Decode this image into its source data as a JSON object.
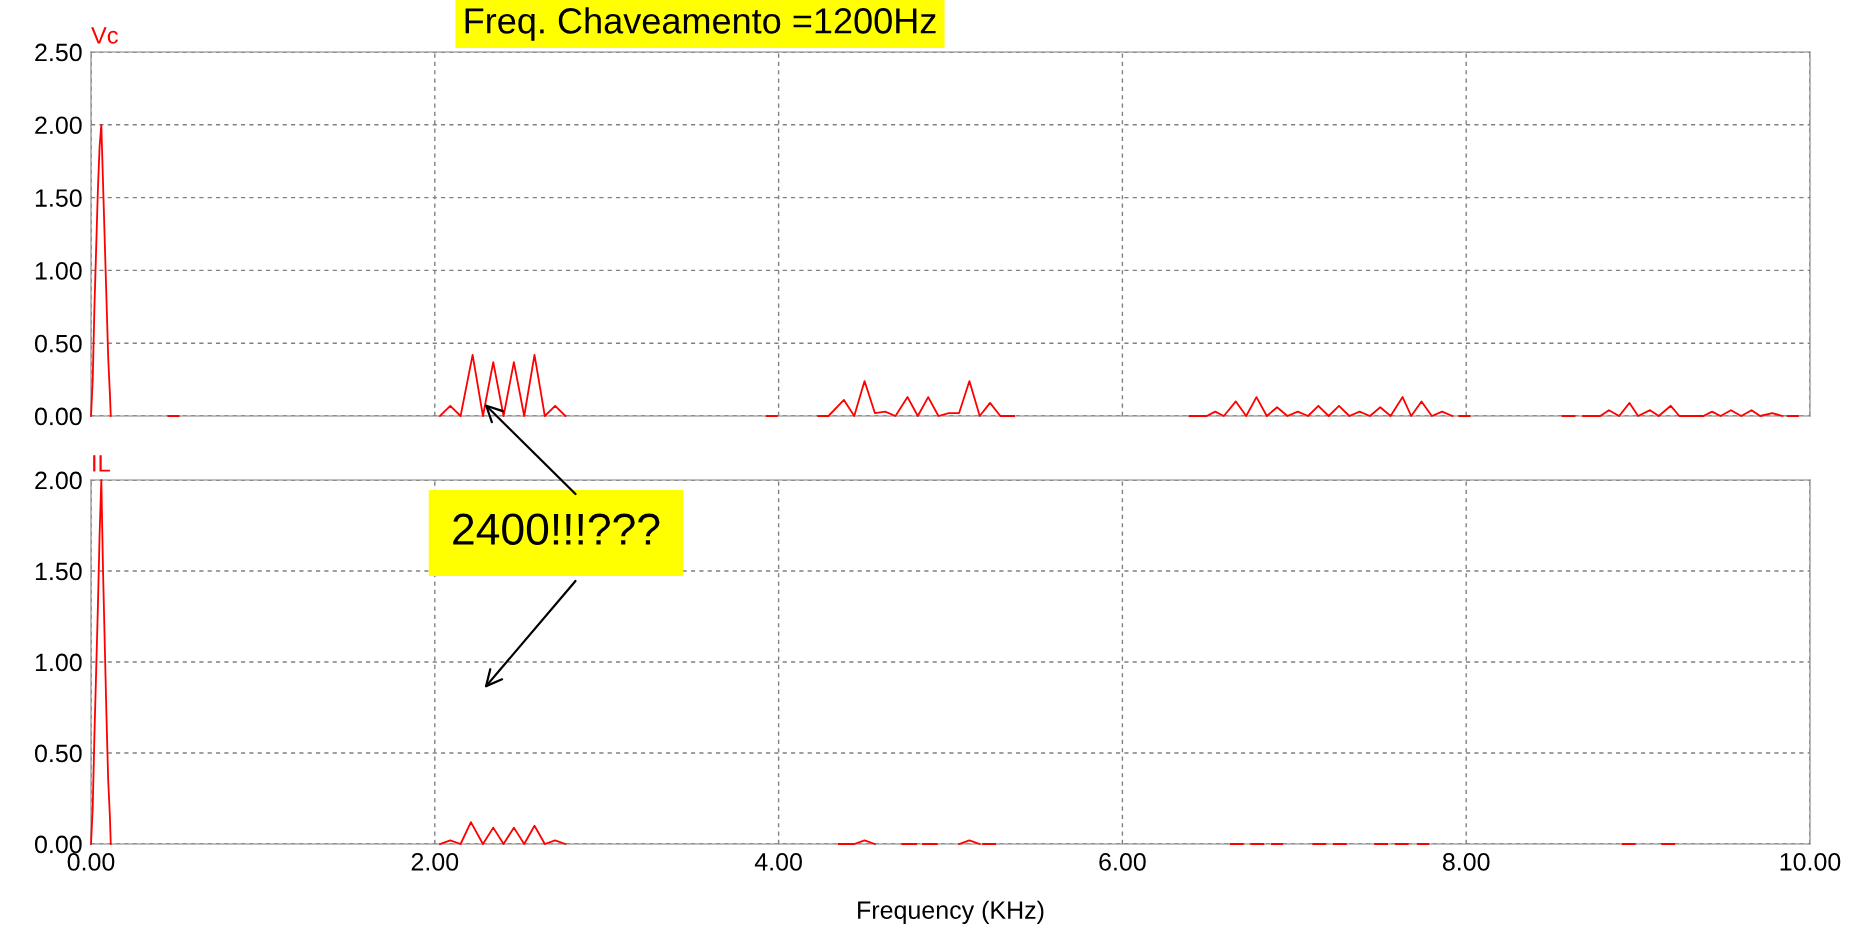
{
  "chart_data": [
    {
      "type": "line",
      "title": "Freq. Chaveamento =1200Hz",
      "ylabel": "Vc",
      "xlim": [
        0,
        10
      ],
      "xticks": [
        {
          "value": 0,
          "label": null
        },
        {
          "value": 2,
          "label": null
        },
        {
          "value": 4,
          "label": null
        },
        {
          "value": 6,
          "label": null
        },
        {
          "value": 8,
          "label": null
        },
        {
          "value": 10,
          "label": null
        }
      ],
      "ylim": [
        0,
        2.5
      ],
      "yticks": [
        {
          "value": 0,
          "label": "0.00"
        },
        {
          "value": 0.5,
          "label": "0.50"
        },
        {
          "value": 1,
          "label": "1.00"
        },
        {
          "value": 1.5,
          "label": "1.50"
        },
        {
          "value": 2,
          "label": "2.00"
        },
        {
          "value": 2.5,
          "label": "2.50"
        }
      ],
      "tick_labels": "y",
      "grid": true,
      "marker": "none",
      "line_style": "solid",
      "series": [
        {
          "color": "#ff0000",
          "x": [
            0,
            0.01,
            0.02,
            0.03,
            0.04,
            0.05,
            0.06,
            0.07,
            0.08,
            0.09,
            0.1,
            0.11,
            0.115,
            0.2,
            0.45,
            0.51,
            0.6,
            2.03,
            2.09,
            2.15,
            2.22,
            2.28,
            2.34,
            2.4,
            2.46,
            2.52,
            2.58,
            2.64,
            2.7,
            2.76,
            3.0,
            3.93,
            3.99,
            4.1,
            4.23,
            4.29,
            4.38,
            4.44,
            4.5,
            4.56,
            4.62,
            4.68,
            4.75,
            4.81,
            4.87,
            4.93,
            4.99,
            5.05,
            5.11,
            5.17,
            5.23,
            5.29,
            5.37,
            5.5,
            6.39,
            6.49,
            6.54,
            6.59,
            6.66,
            6.72,
            6.78,
            6.84,
            6.9,
            6.96,
            7.02,
            7.08,
            7.14,
            7.2,
            7.26,
            7.32,
            7.38,
            7.44,
            7.5,
            7.56,
            7.63,
            7.68,
            7.74,
            7.8,
            7.86,
            7.92,
            7.94,
            7.96,
            8.02,
            8.3,
            8.56,
            8.63,
            8.65,
            8.68,
            8.78,
            8.83,
            8.89,
            8.95,
            9.0,
            9.07,
            9.12,
            9.19,
            9.24,
            9.34,
            9.38,
            9.43,
            9.48,
            9.54,
            9.6,
            9.66,
            9.71,
            9.78,
            9.84,
            9.85,
            9.87,
            9.93
          ],
          "values": [
            0,
            0.25,
            0.75,
            1.15,
            1.55,
            1.85,
            2.0,
            1.6,
            1.2,
            0.8,
            0.4,
            0.15,
            0,
            null,
            0,
            0,
            null,
            0,
            0.07,
            0,
            0.42,
            0,
            0.37,
            0,
            0.37,
            0,
            0.42,
            0,
            0.07,
            0,
            null,
            0,
            0,
            null,
            0,
            0,
            0.11,
            0,
            0.24,
            0.02,
            0.03,
            0,
            0.13,
            0,
            0.13,
            0,
            0.02,
            0.02,
            0.24,
            0,
            0.09,
            0,
            0,
            null,
            0,
            0,
            0.03,
            0,
            0.1,
            0,
            0.13,
            0,
            0.06,
            0,
            0.03,
            0,
            0.07,
            0,
            0.07,
            0,
            0.03,
            0,
            0.06,
            0,
            0.13,
            0,
            0.1,
            0,
            0.03,
            0,
            null,
            0,
            0,
            null,
            0,
            0,
            null,
            0,
            0,
            0.04,
            0,
            0.09,
            0,
            0.04,
            0,
            0.07,
            0,
            0,
            0,
            0.03,
            0,
            0.04,
            0,
            0.04,
            0,
            0.02,
            0,
            null,
            0,
            0
          ]
        }
      ]
    },
    {
      "type": "line",
      "ylabel": "IL",
      "xlabel": "Frequency (KHz)",
      "xlim": [
        0,
        10
      ],
      "xticks": [
        {
          "value": 0,
          "label": "0.00"
        },
        {
          "value": 2,
          "label": "2.00"
        },
        {
          "value": 4,
          "label": "4.00"
        },
        {
          "value": 6,
          "label": "6.00"
        },
        {
          "value": 8,
          "label": "8.00"
        },
        {
          "value": 10,
          "label": "10.00"
        }
      ],
      "ylim": [
        0,
        2.0
      ],
      "yticks": [
        {
          "value": 0,
          "label": "0.00"
        },
        {
          "value": 0.5,
          "label": "0.50"
        },
        {
          "value": 1,
          "label": "1.00"
        },
        {
          "value": 1.5,
          "label": "1.50"
        },
        {
          "value": 2,
          "label": "2.00"
        }
      ],
      "grid": true,
      "marker": "none",
      "line_style": "solid",
      "annotations": [
        "2400!!!???"
      ],
      "series": [
        {
          "color": "#ff0000",
          "x": [
            0,
            0.01,
            0.02,
            0.03,
            0.04,
            0.05,
            0.06,
            0.07,
            0.08,
            0.09,
            0.1,
            0.11,
            0.115,
            0.2,
            2.03,
            2.09,
            2.15,
            2.21,
            2.28,
            2.34,
            2.4,
            2.46,
            2.52,
            2.58,
            2.64,
            2.7,
            2.76,
            3.0,
            4.35,
            4.44,
            4.5,
            4.56,
            4.6,
            4.72,
            4.8,
            4.82,
            4.84,
            4.92,
            4.95,
            5.05,
            5.11,
            5.17,
            5.18,
            5.19,
            5.26,
            5.5,
            6.63,
            6.7,
            6.72,
            6.75,
            6.82,
            6.85,
            6.87,
            6.93,
            7.0,
            7.11,
            7.18,
            7.2,
            7.23,
            7.3,
            7.4,
            7.47,
            7.54,
            7.56,
            7.59,
            7.66,
            7.7,
            7.72,
            7.78,
            8.5,
            8.91,
            8.98,
            9.05,
            9.14,
            9.21
          ],
          "values": [
            0,
            0.2,
            0.6,
            0.95,
            1.3,
            1.7,
            2.0,
            1.5,
            1.1,
            0.7,
            0.35,
            0.15,
            0,
            null,
            0,
            0.02,
            0,
            0.12,
            0,
            0.09,
            0,
            0.09,
            0,
            0.1,
            0,
            0.02,
            0,
            null,
            0,
            0,
            0.02,
            0,
            null,
            0,
            0,
            null,
            0,
            0,
            null,
            0,
            0.02,
            0,
            null,
            0,
            0,
            null,
            0,
            0,
            null,
            0,
            0,
            null,
            0,
            0,
            null,
            0,
            0,
            null,
            0,
            0,
            null,
            0,
            0,
            null,
            0,
            0,
            null,
            0,
            0,
            null,
            0,
            0,
            null,
            0,
            0
          ]
        }
      ]
    }
  ]
}
